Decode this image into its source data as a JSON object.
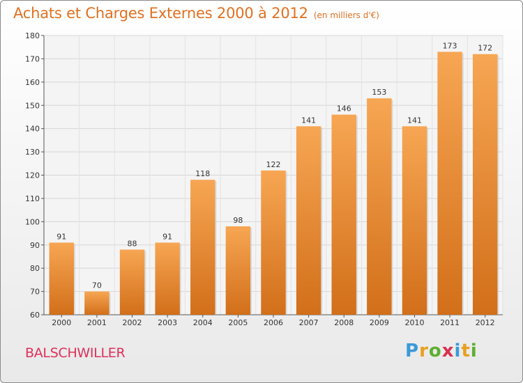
{
  "header": {
    "title": "Achats et Charges Externes 2000 à 2012",
    "subtitle": "(en milliers d'€)"
  },
  "footer": {
    "commune": "BALSCHWILLER",
    "logo_letters": [
      "P",
      "r",
      "o",
      "x",
      "i",
      "t",
      "i"
    ],
    "logo_colors": [
      "#3a9ad9",
      "#e8a020",
      "#5cb030",
      "#d83050",
      "#3a9ad9",
      "#e8a020",
      "#5cb030"
    ]
  },
  "colors": {
    "title": "#e07020",
    "commune": "#e0305a",
    "bar_top": "#f7a653",
    "bar_bottom": "#d26f1a"
  },
  "chart_data": {
    "type": "bar",
    "title": "Achats et Charges Externes 2000 à 2012",
    "subtitle": "(en milliers d'€)",
    "xlabel": "",
    "ylabel": "",
    "categories": [
      "2000",
      "2001",
      "2002",
      "2003",
      "2004",
      "2005",
      "2006",
      "2007",
      "2008",
      "2009",
      "2010",
      "2011",
      "2012"
    ],
    "values": [
      91,
      70,
      88,
      91,
      118,
      98,
      122,
      141,
      146,
      153,
      141,
      173,
      172
    ],
    "ylim": [
      60,
      180
    ],
    "yticks": [
      60,
      70,
      80,
      90,
      100,
      110,
      120,
      130,
      140,
      150,
      160,
      170,
      180
    ],
    "grid": true,
    "legend": "none"
  }
}
